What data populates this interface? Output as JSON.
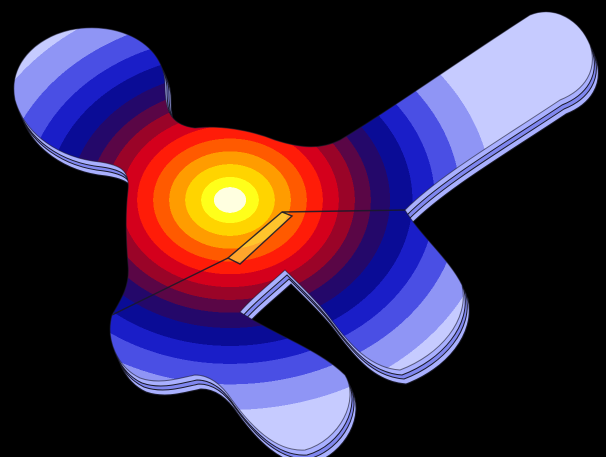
{
  "scene": {
    "background_color": "#000000",
    "colormap": [
      "#c6cbff",
      "#8f95f5",
      "#4a4fe4",
      "#1a1ec8",
      "#0a0c96",
      "#24086a",
      "#5a0646",
      "#9a0428",
      "#d4001c",
      "#ff1c08",
      "#ff5a00",
      "#ff9c00",
      "#ffd400",
      "#ffff1a",
      "#ffffe0"
    ],
    "edge_color": "#1a1a2a",
    "side_color": "#a9b0ff"
  }
}
